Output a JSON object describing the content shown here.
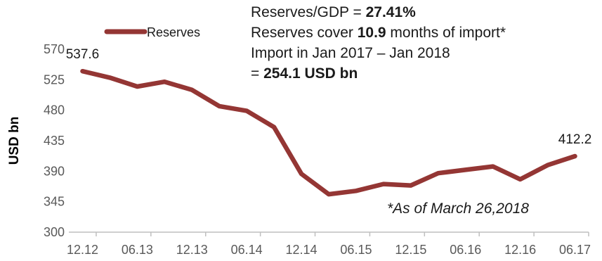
{
  "chart_data": {
    "type": "line",
    "xlabel": "",
    "ylabel": "USD bn",
    "ylim": [
      300,
      570
    ],
    "yticks": [
      300,
      345,
      390,
      435,
      480,
      525,
      570
    ],
    "xticks": [
      "12.12",
      "06.13",
      "12.13",
      "06.14",
      "12.14",
      "06.15",
      "12.15",
      "06.16",
      "12.16",
      "06.17"
    ],
    "grid": false,
    "legend": "top-left",
    "series": [
      {
        "name": "Reserves",
        "color": "#943634",
        "values": [
          537.6,
          528,
          515,
          522,
          510,
          486,
          479,
          455,
          386,
          356,
          361,
          371,
          369,
          387,
          392,
          397,
          378,
          399,
          412.2
        ]
      }
    ],
    "data_labels": [
      {
        "index": 0,
        "text": "537.6"
      },
      {
        "index": 18,
        "text": "412.2"
      }
    ]
  },
  "notes": {
    "line1_prefix": "Reserves/GDP = ",
    "line1_value": "27.41%",
    "line2_prefix": "Reserves cover ",
    "line2_value": "10.9",
    "line2_suffix": " months of import*",
    "line3": "Import in Jan 2017 – Jan 2018",
    "line4_prefix": "= ",
    "line4_value": "254.1 USD bn",
    "as_of": "*As of March 26,2018"
  }
}
